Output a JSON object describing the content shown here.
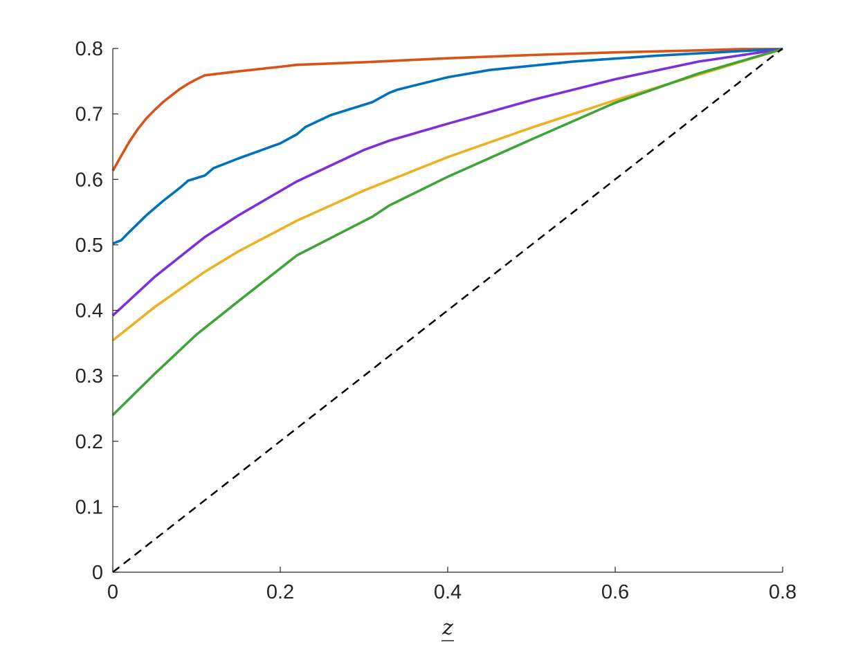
{
  "chart_data": {
    "type": "line",
    "title": "",
    "xlabel": "z",
    "xlabel_underlined": true,
    "ylabel": "",
    "xlim": [
      0,
      0.8
    ],
    "ylim": [
      0,
      0.8
    ],
    "grid": false,
    "x_ticks": [
      0,
      0.2,
      0.4,
      0.6,
      0.8
    ],
    "x_tick_labels": [
      "0",
      "0.2",
      "0.4",
      "0.6",
      "0.8"
    ],
    "y_ticks": [
      0,
      0.1,
      0.2,
      0.3,
      0.4,
      0.5,
      0.6,
      0.7,
      0.8
    ],
    "y_tick_labels": [
      "0",
      "0.1",
      "0.2",
      "0.3",
      "0.4",
      "0.5",
      "0.6",
      "0.7",
      "0.8"
    ],
    "series": [
      {
        "color": "#D95319",
        "style": "solid",
        "x": [
          0,
          0.01,
          0.02,
          0.03,
          0.04,
          0.05,
          0.06,
          0.07,
          0.08,
          0.09,
          0.1,
          0.11,
          0.15,
          0.2,
          0.22,
          0.3,
          0.4,
          0.5,
          0.6,
          0.7,
          0.75,
          0.8
        ],
        "y": [
          0.613,
          0.636,
          0.658,
          0.677,
          0.693,
          0.706,
          0.718,
          0.728,
          0.738,
          0.746,
          0.753,
          0.759,
          0.765,
          0.772,
          0.775,
          0.779,
          0.785,
          0.79,
          0.794,
          0.797,
          0.799,
          0.799
        ]
      },
      {
        "color": "#0072BD",
        "style": "solid",
        "x": [
          0,
          0.01,
          0.02,
          0.04,
          0.06,
          0.08,
          0.09,
          0.11,
          0.12,
          0.15,
          0.2,
          0.22,
          0.23,
          0.26,
          0.31,
          0.33,
          0.34,
          0.4,
          0.45,
          0.55,
          0.65,
          0.75,
          0.8
        ],
        "y": [
          0.502,
          0.507,
          0.52,
          0.545,
          0.567,
          0.587,
          0.598,
          0.606,
          0.617,
          0.632,
          0.655,
          0.669,
          0.68,
          0.698,
          0.718,
          0.732,
          0.737,
          0.756,
          0.767,
          0.78,
          0.789,
          0.796,
          0.799
        ]
      },
      {
        "color": "#7E2FD9",
        "style": "solid",
        "x": [
          0,
          0.05,
          0.11,
          0.15,
          0.22,
          0.3,
          0.33,
          0.4,
          0.5,
          0.6,
          0.7,
          0.8
        ],
        "y": [
          0.392,
          0.451,
          0.512,
          0.545,
          0.597,
          0.645,
          0.659,
          0.685,
          0.721,
          0.753,
          0.78,
          0.799
        ]
      },
      {
        "color": "#EDB120",
        "style": "solid",
        "x": [
          0,
          0.05,
          0.11,
          0.15,
          0.22,
          0.3,
          0.4,
          0.5,
          0.6,
          0.7,
          0.8
        ],
        "y": [
          0.354,
          0.405,
          0.459,
          0.49,
          0.537,
          0.583,
          0.634,
          0.679,
          0.721,
          0.76,
          0.799
        ]
      },
      {
        "color": "#3DA535",
        "style": "solid",
        "x": [
          0,
          0.05,
          0.1,
          0.15,
          0.22,
          0.31,
          0.33,
          0.4,
          0.5,
          0.6,
          0.7,
          0.8
        ],
        "y": [
          0.24,
          0.303,
          0.363,
          0.414,
          0.484,
          0.543,
          0.56,
          0.604,
          0.661,
          0.717,
          0.762,
          0.799
        ]
      },
      {
        "color": "#000000",
        "style": "dashed",
        "x": [
          0,
          0.8
        ],
        "y": [
          0,
          0.8
        ]
      }
    ]
  }
}
